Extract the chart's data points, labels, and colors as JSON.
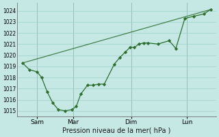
{
  "background_color": "#c5e8e5",
  "grid_color": "#9fcfcc",
  "line_color": "#2d6e2d",
  "marker_color": "#2d6e2d",
  "ylabel_ticks": [
    1015,
    1016,
    1017,
    1018,
    1019,
    1020,
    1021,
    1022,
    1023,
    1024
  ],
  "ylim": [
    1014.5,
    1024.7
  ],
  "xlabel": "Pression niveau de la mer( hPa )",
  "x_tick_labels": [
    "Sam",
    "Mar",
    "Dim",
    "Lun"
  ],
  "x_tick_positions": [
    18,
    50,
    102,
    152
  ],
  "xlim": [
    0,
    178
  ],
  "line1_x": [
    5,
    11,
    18,
    22,
    27,
    32,
    37,
    43,
    49,
    53,
    57,
    63,
    68,
    73,
    78,
    87,
    92,
    97,
    101,
    105,
    109,
    113,
    117,
    126,
    136,
    142,
    150,
    158,
    167,
    173
  ],
  "line1_y": [
    1019.3,
    1018.7,
    1018.5,
    1018.0,
    1016.7,
    1015.7,
    1015.1,
    1015.0,
    1015.1,
    1015.4,
    1016.5,
    1017.3,
    1017.3,
    1017.4,
    1017.4,
    1019.2,
    1019.8,
    1020.3,
    1020.7,
    1020.7,
    1021.0,
    1021.1,
    1021.1,
    1021.0,
    1021.3,
    1020.6,
    1023.3,
    1023.5,
    1023.7,
    1024.1
  ],
  "line2_x": [
    5,
    173
  ],
  "line2_y": [
    1019.3,
    1024.1
  ],
  "vline_positions": [
    18,
    50,
    102,
    152
  ]
}
